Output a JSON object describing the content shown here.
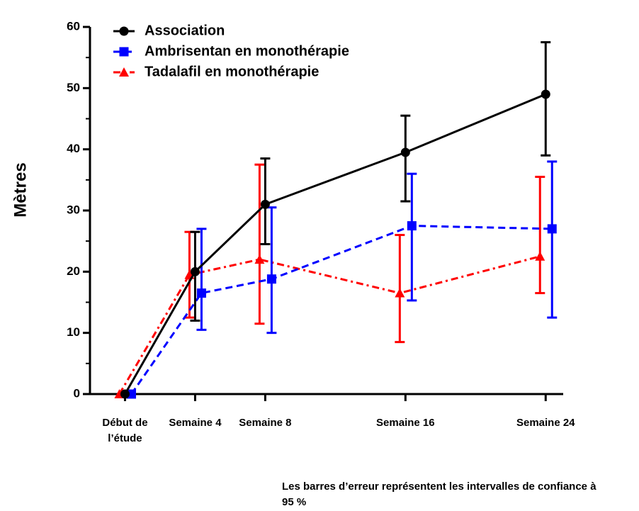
{
  "chart_data": {
    "type": "line",
    "y_label": "Mètres",
    "note": "Les barres d’erreur représentent les intervalles de confiance à 95 %",
    "x": [
      0,
      4,
      8,
      16,
      24
    ],
    "xlim": [
      -2,
      25
    ],
    "xticks": [
      {
        "value": 0,
        "label": "Début de l’étude"
      },
      {
        "value": 4,
        "label": "Semaine 4"
      },
      {
        "value": 8,
        "label": "Semaine 8"
      },
      {
        "value": 16,
        "label": "Semaine 16"
      },
      {
        "value": 24,
        "label": "Semaine 24"
      }
    ],
    "ylim": [
      0,
      60
    ],
    "yticks": [
      0,
      10,
      20,
      30,
      40,
      50,
      60
    ],
    "series": [
      {
        "name": "Association",
        "color": "#000000",
        "linestyle": "solid",
        "marker": "circle",
        "values": [
          0,
          20,
          31,
          39.5,
          49
        ],
        "lower": [
          null,
          12,
          24.5,
          31.5,
          39
        ],
        "upper": [
          null,
          26.5,
          38.5,
          45.5,
          57.5
        ]
      },
      {
        "name": "Ambrisentan en monothérapie",
        "color": "#0000ff",
        "linestyle": "dashed",
        "marker": "square",
        "values": [
          0,
          16.5,
          18.8,
          27.5,
          27
        ],
        "lower": [
          null,
          10.5,
          10,
          15.3,
          12.5
        ],
        "upper": [
          null,
          27,
          30.5,
          36,
          38
        ]
      },
      {
        "name": "Tadalafil en monothérapie",
        "color": "#ff0000",
        "linestyle": "dashdot",
        "marker": "triangle",
        "values": [
          0,
          19.5,
          22,
          16.5,
          22.5
        ],
        "lower": [
          null,
          12.5,
          11.5,
          8.5,
          16.5
        ],
        "upper": [
          null,
          26.5,
          37.5,
          26,
          35.5
        ]
      }
    ]
  }
}
